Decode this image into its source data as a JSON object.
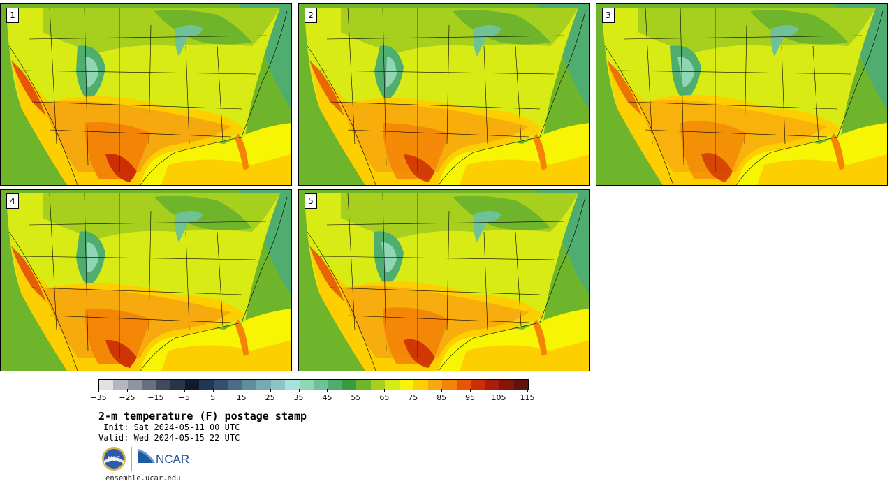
{
  "panels": [
    {
      "label": "1"
    },
    {
      "label": "2"
    },
    {
      "label": "3"
    },
    {
      "label": "4"
    },
    {
      "label": "5"
    }
  ],
  "colorbar": {
    "colors": [
      "#e1e1e1",
      "#b3b6bd",
      "#8f95a1",
      "#68707f",
      "#3f4a5c",
      "#28344a",
      "#101a2b",
      "#213651",
      "#344f6b",
      "#496d84",
      "#5f8d9c",
      "#75aab0",
      "#8cc3c3",
      "#a4e2da",
      "#8fd6b4",
      "#6ec295",
      "#4fad6f",
      "#3b9a3d",
      "#6fb52b",
      "#a6cf1e",
      "#d9eb14",
      "#f7f404",
      "#fdcf00",
      "#f6a80f",
      "#f38406",
      "#e65508",
      "#cc2f05",
      "#a91d0b",
      "#861408",
      "#5e130c"
    ],
    "tick_labels": [
      "−35",
      "−25",
      "−15",
      "−5",
      "5",
      "15",
      "25",
      "35",
      "45",
      "55",
      "65",
      "75",
      "85",
      "95",
      "105",
      "115"
    ]
  },
  "title": "2-m temperature (F) postage stamp",
  "init": " Init: Sat 2024-05-11 00 UTC",
  "valid": "Valid: Wed 2024-05-15 22 UTC",
  "logos": {
    "nsf": "NSF",
    "ncar": "NCAR"
  },
  "site": "ensemble.ucar.edu"
}
